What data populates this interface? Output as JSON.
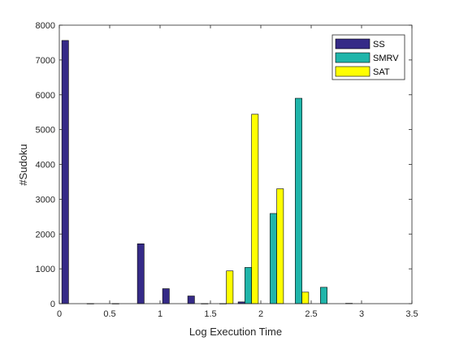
{
  "chart_data": {
    "type": "bar",
    "xlabel": "Log Execution Time",
    "ylabel": "#Sudoku",
    "xlim": [
      0,
      3.5
    ],
    "ylim": [
      0,
      8000
    ],
    "xticks": [
      0,
      0.5,
      1,
      1.5,
      2,
      2.5,
      3,
      3.5
    ],
    "yticks": [
      0,
      1000,
      2000,
      3000,
      4000,
      5000,
      6000,
      7000,
      8000
    ],
    "grid": false,
    "legend_position": "top-right",
    "bin_centers": [
      0.125,
      0.375,
      0.625,
      0.875,
      1.125,
      1.375,
      1.625,
      1.875,
      2.125,
      2.375,
      2.625,
      2.875,
      3.125,
      3.375
    ],
    "series": [
      {
        "name": "SS",
        "color": "#352a87",
        "values": [
          7560,
          5,
          5,
          1720,
          430,
          220,
          0,
          50,
          0,
          0,
          0,
          0,
          0,
          0
        ]
      },
      {
        "name": "SMRV",
        "color": "#1fb5aa",
        "values": [
          0,
          0,
          0,
          0,
          0,
          0,
          5,
          1040,
          2590,
          5900,
          470,
          10,
          0,
          0
        ]
      },
      {
        "name": "SAT",
        "color": "#ffff00",
        "values": [
          0,
          0,
          0,
          0,
          0,
          5,
          940,
          5440,
          3300,
          330,
          0,
          0,
          0,
          0
        ]
      }
    ]
  }
}
